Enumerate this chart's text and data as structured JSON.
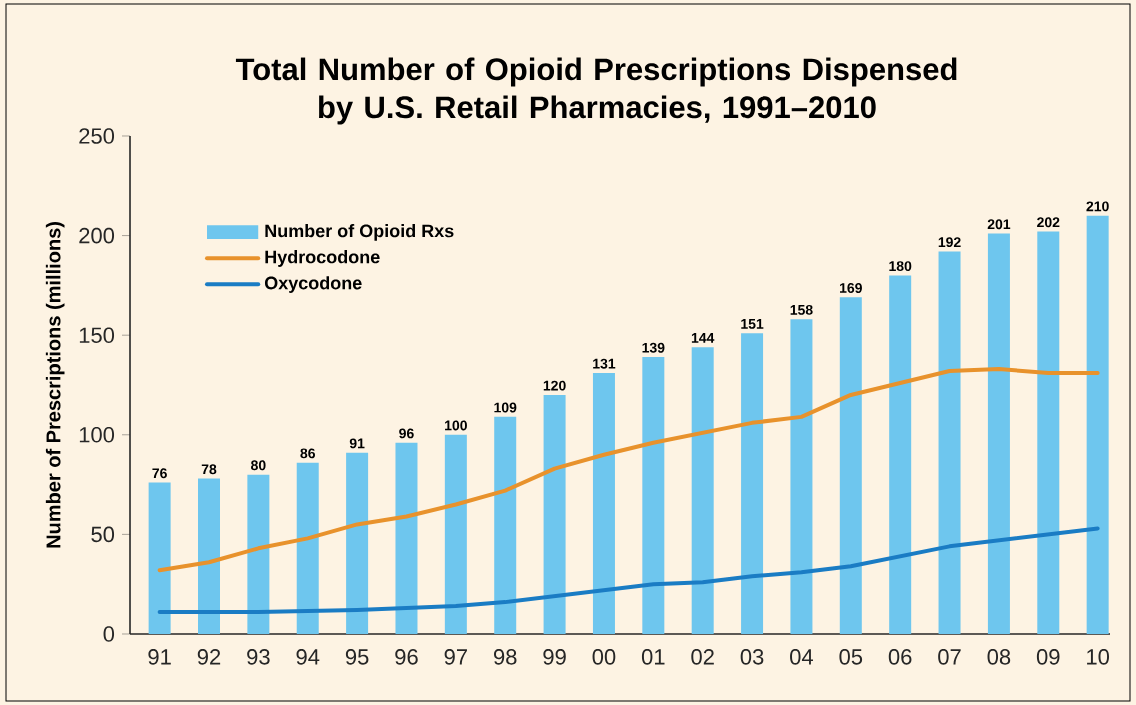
{
  "chart_data": {
    "type": "bar",
    "title": "Total Number of Opioid Prescriptions Dispensed by U.S. Retail Pharmacies, 1991–2010",
    "ylabel": "Number of Prescriptions (millions)",
    "categories": [
      "91",
      "92",
      "93",
      "94",
      "95",
      "96",
      "97",
      "98",
      "99",
      "00",
      "01",
      "02",
      "03",
      "04",
      "05",
      "06",
      "07",
      "08",
      "09",
      "10"
    ],
    "series": [
      {
        "name": "Number of Opioid Rxs",
        "color": "#6ec6ee",
        "values": [
          76,
          78,
          80,
          86,
          91,
          96,
          100,
          109,
          120,
          131,
          139,
          144,
          151,
          158,
          169,
          180,
          192,
          201,
          202,
          210
        ],
        "value_labels": [
          "76",
          "78",
          "80",
          "86",
          "91",
          "96",
          "100",
          "109",
          "120",
          "131",
          "139",
          "144",
          "151",
          "158",
          "169",
          "180",
          "192",
          "201",
          "202",
          "210"
        ]
      },
      {
        "name": "Hydrocodone",
        "type": "line",
        "color": "#e8922c",
        "values": [
          32,
          36,
          43,
          48,
          55,
          59,
          65,
          72,
          83,
          90,
          96,
          101,
          106,
          109,
          120,
          126,
          132,
          133,
          131,
          131
        ]
      },
      {
        "name": "Oxycodone",
        "type": "line",
        "color": "#1a7cc4",
        "values": [
          11,
          11,
          11,
          11.5,
          12,
          13,
          14,
          16,
          19,
          22,
          25,
          26,
          29,
          31,
          34,
          39,
          44,
          47,
          50,
          53
        ]
      }
    ],
    "ylim": [
      0,
      250
    ],
    "yticks": [
      0,
      50,
      100,
      150,
      200,
      250
    ],
    "legend": "top left",
    "grid": false,
    "marker": "none",
    "line_style": "solid"
  }
}
